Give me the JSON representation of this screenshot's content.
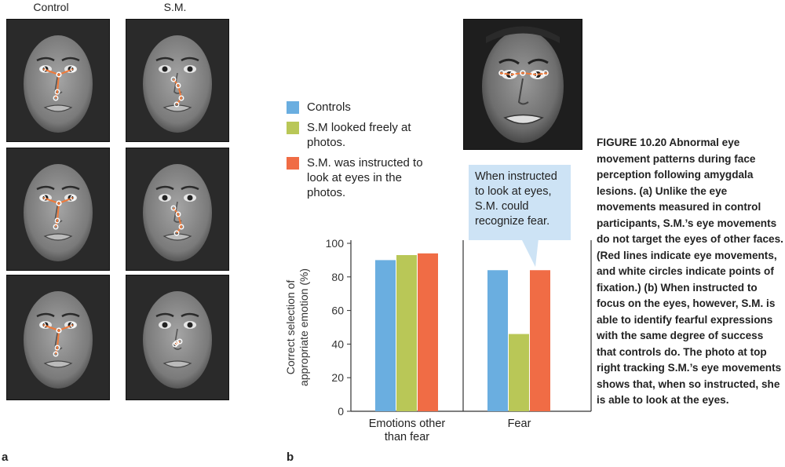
{
  "panel_a": {
    "letter": "a",
    "col_headers": [
      "Control",
      "S.M."
    ]
  },
  "panel_b": {
    "letter": "b"
  },
  "legend": [
    {
      "label": "Controls",
      "color": "#6aaee0"
    },
    {
      "label": "S.M looked freely at photos.",
      "color": "#b9c757"
    },
    {
      "label": "S.M. was instructed to look at eyes in the photos.",
      "color": "#f06c45"
    }
  ],
  "callout": "When instructed to look at eyes, S.M. could recognize fear.",
  "chart_data": {
    "type": "bar",
    "categories": [
      "Emotions other than fear",
      "Fear"
    ],
    "series": [
      {
        "name": "Controls",
        "color": "#6aaee0",
        "values": [
          90,
          84
        ]
      },
      {
        "name": "S.M looked freely at photos.",
        "color": "#b9c757",
        "values": [
          93,
          46
        ]
      },
      {
        "name": "S.M. was instructed to look at eyes in the photos.",
        "color": "#f06c45",
        "values": [
          94,
          84
        ]
      }
    ],
    "ylabel_line1": "Correct selection of",
    "ylabel_line2": "appropriate emotion (%)",
    "yticks": [
      0,
      20,
      40,
      60,
      80,
      100
    ],
    "ylim": [
      0,
      100
    ],
    "cat_labels": [
      [
        "Emotions other",
        "than fear"
      ],
      [
        "Fear"
      ]
    ]
  },
  "caption": {
    "title": "FIGURE 10.20 Abnormal eye movement patterns during face perception following amygdala lesions.",
    "body": "(a) Unlike the eye movements measured in control participants, S.M.’s eye movements do not target the eyes of other faces. (Red lines indicate eye movements, and white circles indicate points of fixation.) (b) When instructed to focus on the eyes, however, S.M. is able to identify fearful expressions with the same degree of success that controls do. The photo at top right tracking S.M.’s eye movements shows that, when so instructed, she is able to look at the eyes."
  }
}
